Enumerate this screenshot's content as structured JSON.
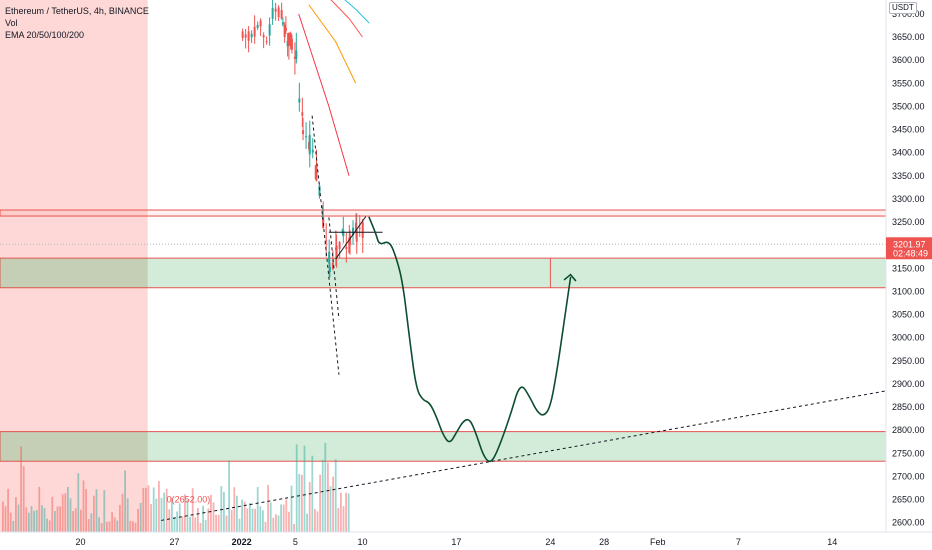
{
  "legend": {
    "title": "Ethereum / TetherUS, 4h, BINANCE",
    "vol": "Vol",
    "ema": "EMA 20/50/100/200"
  },
  "currency": "USDT",
  "price_badge": {
    "price": "3201.97",
    "countdown": "02:48:49"
  },
  "colors": {
    "up": "#26a69a",
    "down": "#ef5350",
    "zone_fill": "#d3ecd9",
    "zone_border": "#e8534f",
    "red_zone": "#fdd8d6",
    "path": "#0b4d2e",
    "price_badge": "#ef5350"
  },
  "chart_data": {
    "type": "candlestick",
    "y_axis": {
      "min": 2580,
      "max": 3730,
      "ticks": [
        "2600.00",
        "2650.00",
        "2700.00",
        "2750.00",
        "2800.00",
        "2850.00",
        "2900.00",
        "2950.00",
        "3000.00",
        "3050.00",
        "3100.00",
        "3150.00",
        "3200.00",
        "3250.00",
        "3300.00",
        "3350.00",
        "3400.00",
        "3450.00",
        "3500.00",
        "3550.00",
        "3600.00",
        "3650.00",
        "3700.00"
      ]
    },
    "x_axis": {
      "start": "2021-12-14",
      "end": "2022-02-18",
      "ticks": [
        {
          "date": "2021-12-20",
          "label": "20"
        },
        {
          "date": "2021-12-27",
          "label": "27"
        },
        {
          "date": "2022-01-01",
          "label": "2022"
        },
        {
          "date": "2022-01-05",
          "label": "5"
        },
        {
          "date": "2022-01-10",
          "label": "10"
        },
        {
          "date": "2022-01-17",
          "label": "17"
        },
        {
          "date": "2022-01-24",
          "label": "24"
        },
        {
          "date": "2022-01-28",
          "label": "28"
        },
        {
          "date": "2022-02-01",
          "label": "Feb"
        },
        {
          "date": "2022-02-07",
          "label": "7"
        },
        {
          "date": "2022-02-14",
          "label": "14"
        }
      ]
    },
    "zones": [
      {
        "from": 3263,
        "to": 3276
      },
      {
        "from": 3108,
        "to": 3172
      },
      {
        "from": 2733,
        "to": 2797
      }
    ],
    "red_zone": {
      "from": "2021-12-14",
      "to": "2021-12-25"
    },
    "trendline": {
      "from": {
        "date": "2021-12-26",
        "price": 2605
      },
      "to": {
        "date": "2022-02-18",
        "price": 2885
      }
    },
    "volume_label": "0(2652.00)",
    "projected_path": [
      {
        "date": "2022-01-10 12:00",
        "price": 3260
      },
      {
        "date": "2022-01-11",
        "price": 3225
      },
      {
        "date": "2022-01-11 06:00",
        "price": 3200
      },
      {
        "date": "2022-01-12",
        "price": 3210
      },
      {
        "date": "2022-01-12 12:00",
        "price": 3175
      },
      {
        "date": "2022-01-13",
        "price": 3120
      },
      {
        "date": "2022-01-13 12:00",
        "price": 3000
      },
      {
        "date": "2022-01-14",
        "price": 2890
      },
      {
        "date": "2022-01-14 12:00",
        "price": 2865
      },
      {
        "date": "2022-01-15",
        "price": 2860
      },
      {
        "date": "2022-01-15 12:00",
        "price": 2830
      },
      {
        "date": "2022-01-16",
        "price": 2790
      },
      {
        "date": "2022-01-16 12:00",
        "price": 2770
      },
      {
        "date": "2022-01-17",
        "price": 2795
      },
      {
        "date": "2022-01-17 12:00",
        "price": 2820
      },
      {
        "date": "2022-01-18",
        "price": 2825
      },
      {
        "date": "2022-01-18 12:00",
        "price": 2790
      },
      {
        "date": "2022-01-19",
        "price": 2745
      },
      {
        "date": "2022-01-19 12:00",
        "price": 2728
      },
      {
        "date": "2022-01-20",
        "price": 2750
      },
      {
        "date": "2022-01-21",
        "price": 2830
      },
      {
        "date": "2022-01-21 18:00",
        "price": 2905
      },
      {
        "date": "2022-01-22 12:00",
        "price": 2870
      },
      {
        "date": "2022-01-23",
        "price": 2840
      },
      {
        "date": "2022-01-23 12:00",
        "price": 2830
      },
      {
        "date": "2022-01-24",
        "price": 2850
      },
      {
        "date": "2022-01-24 12:00",
        "price": 2930
      },
      {
        "date": "2022-01-25",
        "price": 3030
      },
      {
        "date": "2022-01-25 12:00",
        "price": 3130
      }
    ],
    "price_path": [
      {
        "date": "2022-01-04",
        "price": 3700
      },
      {
        "date": "2022-01-05",
        "price": 3600
      },
      {
        "date": "2022-01-05 12:00",
        "price": 3450
      },
      {
        "date": "2022-01-06",
        "price": 3420
      },
      {
        "date": "2022-01-06 12:00",
        "price": 3350
      },
      {
        "date": "2022-01-07",
        "price": 3250
      },
      {
        "date": "2022-01-07 12:00",
        "price": 3160
      },
      {
        "date": "2022-01-08",
        "price": 3180
      },
      {
        "date": "2022-01-08 12:00",
        "price": 3215
      },
      {
        "date": "2022-01-09",
        "price": 3200
      },
      {
        "date": "2022-01-09 12:00",
        "price": 3230
      },
      {
        "date": "2022-01-10",
        "price": 3240
      }
    ]
  }
}
